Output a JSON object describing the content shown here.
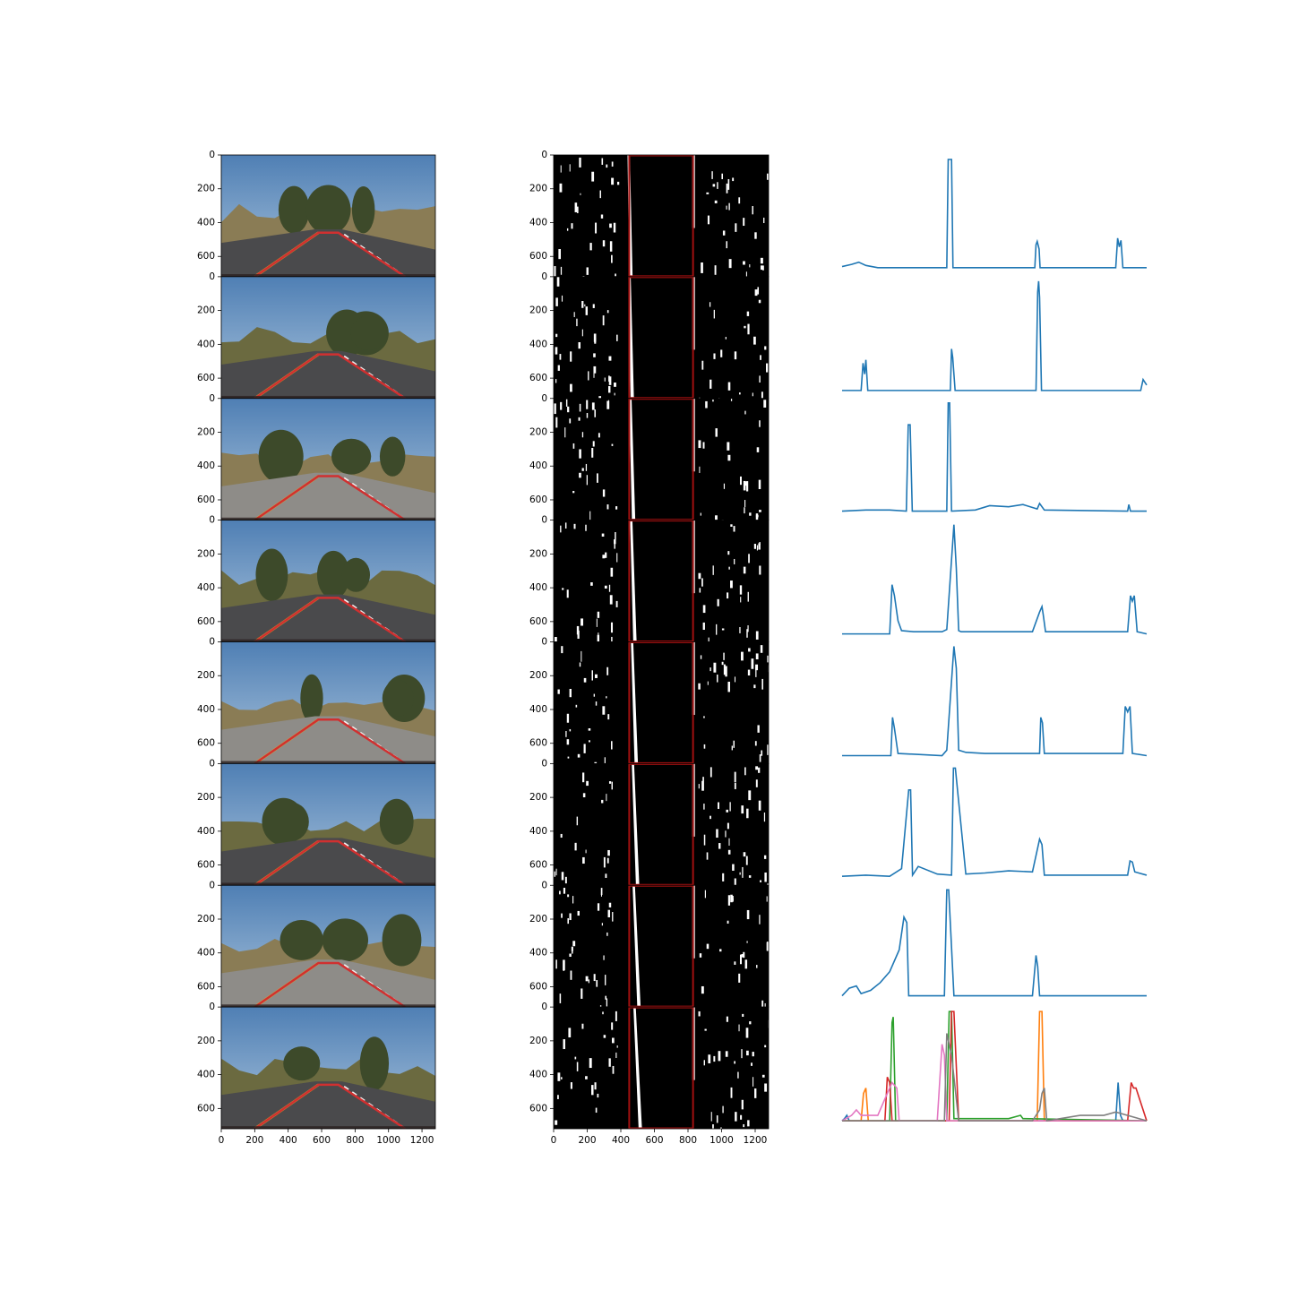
{
  "image_axes": {
    "xlim": [
      0,
      1280
    ],
    "ylim": [
      720,
      0
    ],
    "xticks": [
      0,
      200,
      400,
      600,
      800,
      1000,
      1200
    ],
    "yticks": [
      0,
      200,
      400,
      600
    ]
  },
  "chart_data": [
    {
      "type": "line",
      "xlim": [
        0,
        1280
      ],
      "ylim": [
        0,
        100
      ],
      "series": [
        {
          "color": "#1f77b4",
          "x": [
            0,
            40,
            70,
            100,
            150,
            440,
            446,
            450,
            460,
            466,
            810,
            815,
            820,
            828,
            832,
            1150,
            1158,
            1165,
            1172,
            1180,
            1280
          ],
          "values": [
            2,
            4,
            6,
            3,
            1,
            1,
            100,
            100,
            100,
            1,
            1,
            22,
            25,
            18,
            1,
            1,
            28,
            20,
            26,
            1,
            1
          ]
        }
      ]
    },
    {
      "type": "line",
      "xlim": [
        0,
        1280
      ],
      "ylim": [
        0,
        100
      ],
      "series": [
        {
          "color": "#1f77b4",
          "x": [
            0,
            80,
            88,
            95,
            100,
            108,
            440,
            455,
            460,
            465,
            475,
            815,
            822,
            826,
            830,
            838,
            1240,
            1255,
            1265,
            1280
          ],
          "values": [
            0,
            0,
            25,
            15,
            28,
            0,
            0,
            0,
            38,
            30,
            0,
            0,
            90,
            100,
            85,
            0,
            0,
            0,
            10,
            5
          ]
        }
      ]
    },
    {
      "type": "line",
      "xlim": [
        0,
        1280
      ],
      "ylim": [
        0,
        100
      ],
      "series": [
        {
          "color": "#1f77b4",
          "x": [
            0,
            100,
            200,
            270,
            278,
            286,
            295,
            440,
            446,
            452,
            460,
            560,
            620,
            700,
            760,
            820,
            830,
            850,
            1200,
            1205,
            1212,
            1280
          ],
          "values": [
            1,
            2,
            2,
            1,
            80,
            80,
            1,
            1,
            100,
            100,
            1,
            2,
            6,
            5,
            7,
            3,
            8,
            2,
            1,
            7,
            1,
            1
          ]
        }
      ]
    },
    {
      "type": "line",
      "xlim": [
        0,
        1280
      ],
      "ylim": [
        0,
        100
      ],
      "series": [
        {
          "color": "#1f77b4",
          "x": [
            0,
            200,
            210,
            220,
            235,
            250,
            300,
            420,
            440,
            470,
            480,
            490,
            500,
            800,
            830,
            840,
            845,
            855,
            1200,
            1212,
            1220,
            1228,
            1240,
            1280
          ],
          "values": [
            0,
            0,
            45,
            35,
            12,
            3,
            2,
            2,
            4,
            100,
            60,
            3,
            2,
            2,
            20,
            25,
            18,
            2,
            2,
            35,
            30,
            35,
            2,
            0
          ]
        }
      ]
    },
    {
      "type": "line",
      "xlim": [
        0,
        1280
      ],
      "ylim": [
        0,
        100
      ],
      "series": [
        {
          "color": "#1f77b4",
          "x": [
            0,
            205,
            212,
            220,
            235,
            420,
            440,
            470,
            480,
            490,
            520,
            600,
            830,
            835,
            842,
            850,
            1180,
            1190,
            1200,
            1210,
            1220,
            1280
          ],
          "values": [
            0,
            0,
            35,
            25,
            2,
            0,
            5,
            100,
            80,
            5,
            3,
            2,
            2,
            35,
            30,
            2,
            2,
            45,
            40,
            45,
            2,
            0
          ]
        }
      ]
    },
    {
      "type": "line",
      "xlim": [
        0,
        1280
      ],
      "ylim": [
        0,
        100
      ],
      "series": [
        {
          "color": "#1f77b4",
          "x": [
            0,
            100,
            200,
            250,
            280,
            288,
            296,
            320,
            400,
            460,
            468,
            476,
            520,
            600,
            700,
            800,
            830,
            840,
            850,
            1200,
            1210,
            1220,
            1230,
            1280
          ],
          "values": [
            1,
            2,
            1,
            8,
            80,
            80,
            2,
            10,
            3,
            2,
            100,
            100,
            3,
            4,
            6,
            5,
            35,
            30,
            2,
            2,
            15,
            14,
            5,
            2
          ]
        }
      ]
    },
    {
      "type": "line",
      "xlim": [
        0,
        1280
      ],
      "ylim": [
        0,
        100
      ],
      "series": [
        {
          "color": "#1f77b4",
          "x": [
            0,
            30,
            60,
            80,
            120,
            160,
            200,
            240,
            260,
            272,
            280,
            400,
            430,
            440,
            448,
            470,
            600,
            800,
            815,
            822,
            830,
            1280
          ],
          "values": [
            3,
            10,
            12,
            5,
            8,
            15,
            25,
            45,
            75,
            70,
            3,
            3,
            3,
            100,
            100,
            3,
            3,
            3,
            40,
            30,
            3,
            3
          ]
        }
      ]
    },
    {
      "type": "line",
      "xlim": [
        0,
        1280
      ],
      "ylim": [
        0,
        100
      ],
      "series": [
        {
          "color": "#1f77b4",
          "x": [
            0,
            10,
            20,
            30,
            1150,
            1160,
            1170,
            1180,
            1280
          ],
          "values": [
            0,
            2,
            5,
            0,
            0,
            35,
            5,
            0,
            0
          ]
        },
        {
          "color": "#ff7f0e",
          "x": [
            0,
            80,
            90,
            100,
            110,
            800,
            820,
            830,
            840,
            850,
            1280
          ],
          "values": [
            0,
            0,
            25,
            30,
            0,
            0,
            0,
            100,
            100,
            0,
            0
          ]
        },
        {
          "color": "#2ca02c",
          "x": [
            0,
            200,
            210,
            215,
            225,
            440,
            450,
            460,
            470,
            480,
            700,
            750,
            760,
            1280
          ],
          "values": [
            0,
            0,
            90,
            95,
            0,
            0,
            100,
            100,
            2,
            2,
            2,
            5,
            2,
            0
          ]
        },
        {
          "color": "#d62728",
          "x": [
            0,
            180,
            190,
            200,
            210,
            450,
            460,
            470,
            480,
            490,
            1200,
            1215,
            1225,
            1235,
            1280
          ],
          "values": [
            0,
            0,
            40,
            35,
            0,
            0,
            100,
            100,
            50,
            0,
            0,
            35,
            30,
            30,
            0
          ]
        },
        {
          "color": "#e377c2",
          "x": [
            0,
            40,
            60,
            80,
            150,
            180,
            210,
            230,
            240,
            400,
            420,
            430,
            440,
            1280
          ],
          "values": [
            0,
            5,
            10,
            5,
            5,
            20,
            35,
            30,
            0,
            0,
            70,
            60,
            0,
            0
          ]
        },
        {
          "color": "#7f7f7f",
          "x": [
            0,
            400,
            430,
            440,
            460,
            480,
            490,
            800,
            830,
            840,
            850,
            860,
            1000,
            1100,
            1150,
            1280
          ],
          "values": [
            0,
            0,
            0,
            80,
            60,
            20,
            0,
            0,
            10,
            25,
            30,
            0,
            5,
            5,
            8,
            0
          ]
        }
      ]
    }
  ]
}
